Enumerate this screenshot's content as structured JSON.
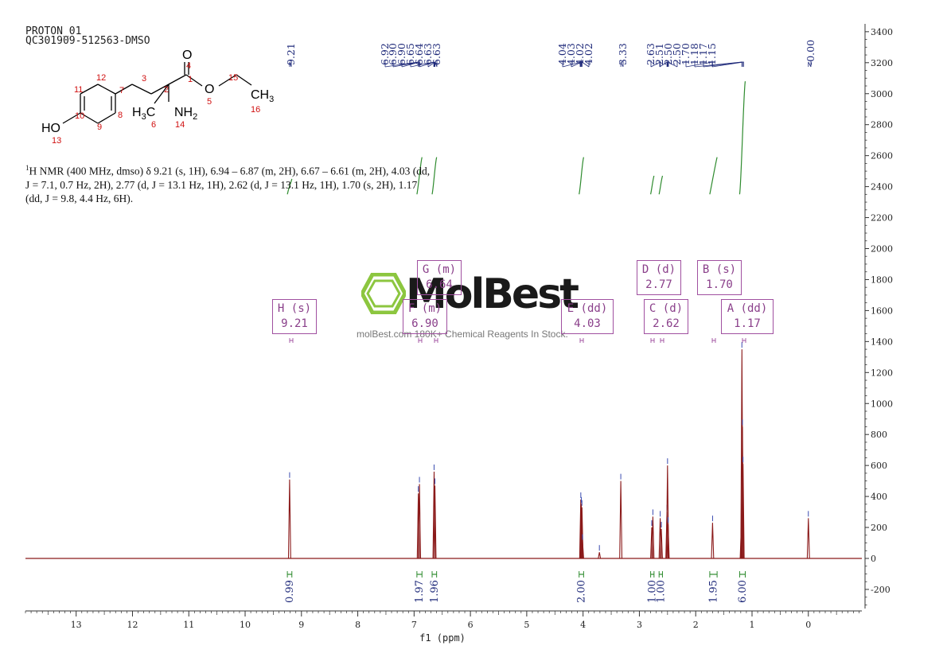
{
  "header": {
    "line1": "PROTON_01",
    "line2": "QC301909-512563-DMSO"
  },
  "structure": {
    "atoms": {
      "o_top": "O",
      "n4": "4",
      "n1": "1",
      "n3": "3",
      "n2": "2",
      "n12": "12",
      "n11": "11",
      "n7": "7",
      "n10": "10",
      "n9": "9",
      "n8": "8",
      "ho": "HO",
      "n13": "13",
      "ch3a": "H",
      "ch3a_sub": "3",
      "ch3a_c": "C",
      "n6": "6",
      "nh2": "NH",
      "nh2_sub": "2",
      "n14": "14",
      "o5": "O",
      "n5": "5",
      "n15": "15",
      "ch3b": "CH",
      "ch3b_sub": "3",
      "n16": "16"
    }
  },
  "nmr_description": {
    "line1_a": "1",
    "line1_b": "H NMR (400 MHz, dmso) δ 9.21 (s, 1H), 6.94 – 6.87 (m, 2H), 6.67 – 6.61 (m, 2H), 4.03 (dd,",
    "line2": "J = 7.1, 0.7 Hz, 2H), 2.77 (d, J = 13.1 Hz, 1H), 2.62 (d, J = 13.1 Hz, 1H), 1.70 (s, 2H), 1.17",
    "line3": "(dd, J = 9.8, 4.4 Hz, 6H)."
  },
  "peak_boxes": [
    {
      "label": "H (s)",
      "value": "9.21"
    },
    {
      "label": "G (m)",
      "value": "6.64"
    },
    {
      "label": "F (m)",
      "value": "6.90"
    },
    {
      "label": "E (dd)",
      "value": "4.03"
    },
    {
      "label": "D (d)",
      "value": "2.77"
    },
    {
      "label": "C (d)",
      "value": "2.62"
    },
    {
      "label": "B (s)",
      "value": "1.70"
    },
    {
      "label": "A (dd)",
      "value": "1.17"
    }
  ],
  "watermark": {
    "brand": "MolBest",
    "tagline": "molBest.com 180K+ Chemical Reagents In Stock."
  },
  "colors": {
    "spectrum": "#8b1a1a",
    "peak_label": "#1f2a7a",
    "integral": "#2e8b2e",
    "box": "#a050a0",
    "axis": "#333333"
  },
  "chart_data": {
    "type": "line",
    "xlabel": "f1 (ppm)",
    "x_range": [
      -0.95,
      13.9
    ],
    "x_ticks": [
      13,
      12,
      11,
      10,
      9,
      8,
      7,
      6,
      5,
      4,
      3,
      2,
      1,
      0
    ],
    "y_range": [
      -330,
      3450
    ],
    "y_ticks": [
      3400,
      3200,
      3000,
      2800,
      2600,
      2400,
      2200,
      2000,
      1800,
      1600,
      1400,
      1200,
      1000,
      800,
      600,
      400,
      200,
      0,
      -200
    ],
    "peak_labels": [
      "9.21",
      "6.92",
      "6.90",
      "6.90",
      "6.65",
      "6.64",
      "6.63",
      "6.63",
      "4.04",
      "4.03",
      "4.02",
      "4.02",
      "3.33",
      "2.63",
      "2.51",
      "2.50",
      "2.50",
      "1.70",
      "1.18",
      "1.17",
      "1.15",
      "-0.00"
    ],
    "peaks": [
      {
        "ppm": 9.21,
        "height": 510
      },
      {
        "ppm": 6.925,
        "height": 420
      },
      {
        "ppm": 6.905,
        "height": 480
      },
      {
        "ppm": 6.645,
        "height": 560
      },
      {
        "ppm": 6.63,
        "height": 470
      },
      {
        "ppm": 4.04,
        "height": 380
      },
      {
        "ppm": 4.03,
        "height": 350
      },
      {
        "ppm": 4.02,
        "height": 330
      },
      {
        "ppm": 4.01,
        "height": 110
      },
      {
        "ppm": 3.71,
        "height": 40
      },
      {
        "ppm": 3.33,
        "height": 500
      },
      {
        "ppm": 2.78,
        "height": 200
      },
      {
        "ppm": 2.76,
        "height": 270
      },
      {
        "ppm": 2.63,
        "height": 260
      },
      {
        "ppm": 2.61,
        "height": 190
      },
      {
        "ppm": 2.51,
        "height": 300
      },
      {
        "ppm": 2.5,
        "height": 600
      },
      {
        "ppm": 2.49,
        "height": 220
      },
      {
        "ppm": 1.7,
        "height": 230
      },
      {
        "ppm": 1.19,
        "height": 200
      },
      {
        "ppm": 1.18,
        "height": 1350
      },
      {
        "ppm": 1.17,
        "height": 850
      },
      {
        "ppm": 1.16,
        "height": 610
      },
      {
        "ppm": 0.0,
        "height": 260
      }
    ],
    "integrals": [
      {
        "ppm": 9.21,
        "value": "0.99",
        "from": 9.25,
        "to": 9.17,
        "y0": 2350,
        "y1": 2450
      },
      {
        "ppm": 6.9,
        "value": "1.97",
        "from": 6.95,
        "to": 6.86,
        "y0": 2350,
        "y1": 2590
      },
      {
        "ppm": 6.64,
        "value": "1.96",
        "from": 6.68,
        "to": 6.6,
        "y0": 2350,
        "y1": 2590
      },
      {
        "ppm": 4.03,
        "value": "2.00",
        "from": 4.07,
        "to": 3.99,
        "y0": 2350,
        "y1": 2590
      },
      {
        "ppm": 2.77,
        "value": "1.00",
        "from": 2.8,
        "to": 2.74,
        "y0": 2350,
        "y1": 2470
      },
      {
        "ppm": 2.62,
        "value": "1.00",
        "from": 2.65,
        "to": 2.59,
        "y0": 2350,
        "y1": 2470
      },
      {
        "ppm": 1.7,
        "value": "1.95",
        "from": 1.75,
        "to": 1.62,
        "y0": 2350,
        "y1": 2590
      },
      {
        "ppm": 1.17,
        "value": "6.00",
        "from": 1.22,
        "to": 1.12,
        "y0": 2350,
        "y1": 3080
      }
    ]
  }
}
